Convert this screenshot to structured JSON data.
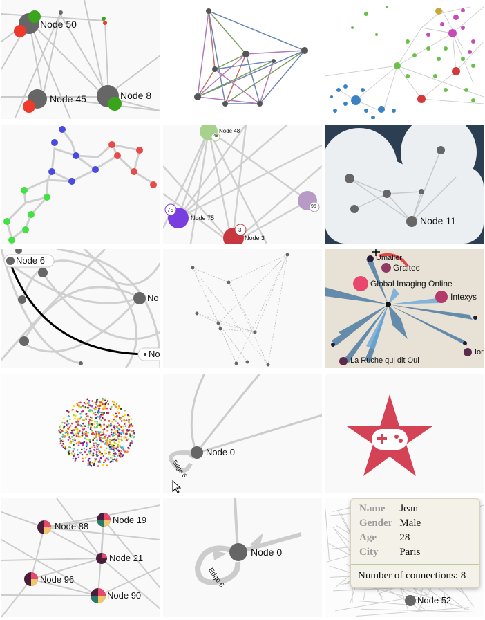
{
  "tiles": {
    "t1": {
      "node50": "Node 50",
      "node45": "Node 45",
      "node8": "Node 8",
      "colors": {
        "green": "#3aa51c",
        "red": "#ee3a2c",
        "node": "#666666"
      }
    },
    "t5": {
      "node48": "Node 48",
      "badge48": "48",
      "node75": "Node 75",
      "badge75": "75",
      "node3": "Node 3",
      "badge3": "3",
      "badge95": "95",
      "colors": {
        "purple": "#7a3de0",
        "red": "#c7373f",
        "green": "#a9d18e",
        "mauve": "#b79bc6"
      }
    },
    "t6": {
      "node11": "Node 11",
      "colors": {
        "dark": "#2c3e52",
        "cloud": "#eceff1"
      }
    },
    "t7": {
      "node6": "Node 6",
      "nodeNo1": "No",
      "nodeNo2": "No"
    },
    "t9": {
      "umaller": "Umaller",
      "graitec": "Graitec",
      "gio": "Global Imaging Online",
      "intexys": "Intexys",
      "laruche": "La Ruche qui dit Oui",
      "ior": "Ior",
      "colors": {
        "pink": "#e8486d",
        "plum": "#8e3a64",
        "blue": "#3a6f9c"
      }
    },
    "t11": {
      "node0": "Node 0",
      "edge6": "Edge 6"
    },
    "t12": {
      "colors": {
        "star": "#d44355"
      }
    },
    "t13": {
      "node88": "Node 88",
      "node19": "Node 19",
      "node21": "Node 21",
      "node96": "Node 96",
      "node90": "Node 90"
    },
    "t14": {
      "node0": "Node 0",
      "edge6": "Edge 6"
    },
    "t15": {
      "node52": "Node 52",
      "tooltip": {
        "name_label": "Name",
        "name_value": "Jean",
        "gender_label": "Gender",
        "gender_value": "Male",
        "age_label": "Age",
        "age_value": "28",
        "city_label": "City",
        "city_value": "Paris",
        "connections": "Number of connections: 8"
      }
    }
  }
}
